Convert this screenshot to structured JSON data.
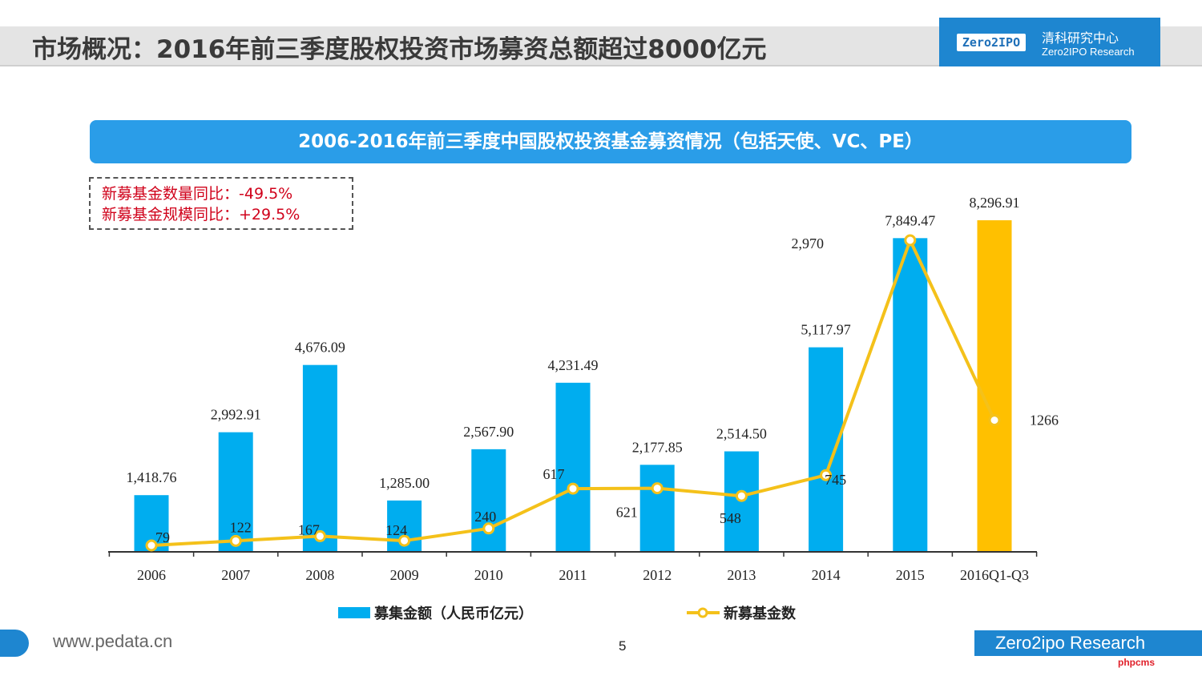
{
  "header": {
    "title": "市场概况：2016年前三季度股权投资市场募资总额超过8000亿元",
    "brand_logo": "Zero2IPO",
    "brand_cn": "清科研究中心",
    "brand_en": "Zero2IPO Research"
  },
  "notes": [
    "新募基金数量同比：-49.5%",
    "新募基金规模同比：+29.5%"
  ],
  "footer": {
    "url": "www.pedata.cn",
    "page": "5",
    "brand": "Zero2ipo Research",
    "watermark": "phpcms"
  },
  "colors": {
    "bar": "#00adef",
    "bar_highlight": "#ffc000",
    "line": "#f4c11a",
    "banner": "#2a9de8",
    "note_text": "#d0021b"
  },
  "chart_data": {
    "type": "bar",
    "title": "2006-2016年前三季度中国股权投资基金募资情况（包括天使、VC、PE）",
    "categories": [
      "2006",
      "2007",
      "2008",
      "2009",
      "2010",
      "2011",
      "2012",
      "2013",
      "2014",
      "2015",
      "2016Q1-Q3"
    ],
    "series": [
      {
        "name": "募集金额（人民币亿元）",
        "type": "bar",
        "values": [
          1418.76,
          2992.91,
          4676.09,
          1285.0,
          2567.9,
          4231.49,
          2177.85,
          2514.5,
          5117.97,
          7849.47,
          8296.91
        ],
        "labels": [
          "1,418.76",
          "2,992.91",
          "4,676.09",
          "1,285.00",
          "2,567.90",
          "4,231.49",
          "2,177.85",
          "2,514.50",
          "5,117.97",
          "7,849.47",
          "8,296.91"
        ]
      },
      {
        "name": "新募基金数",
        "type": "line",
        "values": [
          79,
          122,
          167,
          124,
          240,
          617,
          621,
          548,
          745,
          2970,
          1266
        ],
        "labels": [
          "79",
          "122",
          "167",
          "124",
          "240",
          "617",
          "621",
          "548",
          "745",
          "2,970",
          "1266"
        ]
      }
    ],
    "legend_position": "bottom",
    "grid": false
  }
}
